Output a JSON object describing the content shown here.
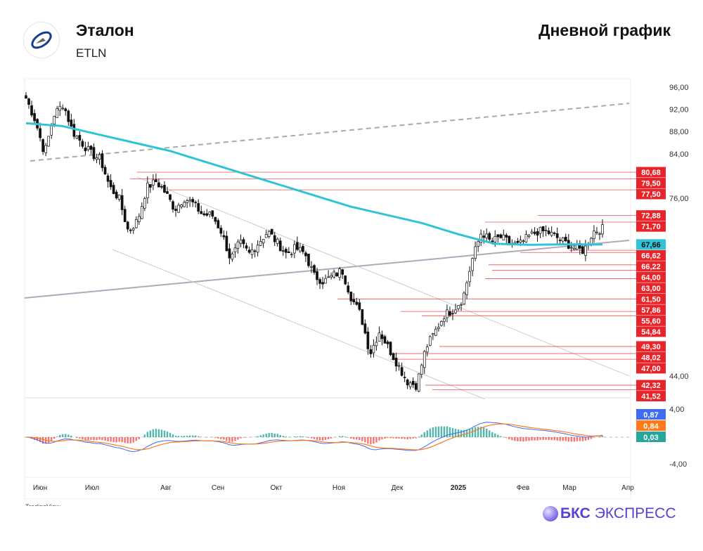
{
  "header": {
    "name": "Эталон",
    "ticker": "ETLN",
    "chart_title": "Дневной график"
  },
  "footer": {
    "tradingview": "TradingView",
    "brand_bold": "БКС",
    "brand_rest": "ЭКСПРЕСС"
  },
  "colors": {
    "up": "#ffffff",
    "down": "#111111",
    "ma": "#2ec4d6",
    "level": "#e8242a",
    "macd": "#3f6cf0",
    "signal": "#ff7a1a",
    "hist_pos": "#26a69a",
    "hist_neg": "#ef5350"
  },
  "chart_data": {
    "type": "candlestick",
    "title": "Дневной график",
    "x_ticks": [
      "Июн",
      "Июл",
      "Авг",
      "Сен",
      "Окт",
      "Ноя",
      "Дек",
      "2025",
      "Фев",
      "Мар",
      "Апр"
    ],
    "y_ticks": [
      "96,00",
      "92,00",
      "88,00",
      "84,00",
      "76,00",
      "44,00"
    ],
    "ylim": [
      40,
      97
    ],
    "close_keypoints": [
      94,
      90,
      84,
      91,
      93,
      88,
      86,
      84,
      83,
      78,
      76,
      70,
      72,
      78,
      79,
      77,
      74,
      76,
      75,
      73,
      73,
      70,
      65,
      68,
      66,
      68,
      70,
      68,
      66,
      67,
      66,
      62,
      61,
      62,
      63,
      58,
      55,
      48,
      52,
      49,
      46,
      43,
      42.3,
      49,
      52,
      55,
      56,
      58,
      65,
      70,
      68,
      69,
      68,
      67.5,
      69,
      70,
      70,
      69,
      68,
      67,
      66.5,
      70,
      70.5
    ],
    "ma_keypoints": [
      89.5,
      89,
      87.5,
      86,
      84.5,
      82.5,
      80.5,
      78.5,
      76.5,
      74.5,
      73,
      71.5,
      69.5,
      67.8,
      67.6,
      67.7,
      67.66
    ],
    "levels": [
      {
        "label": "80,68",
        "value": 80.68
      },
      {
        "label": "79,50",
        "value": 79.5
      },
      {
        "label": "77,50",
        "value": 77.5
      },
      {
        "label": "72,88",
        "value": 72.88
      },
      {
        "label": "71,70",
        "value": 71.7
      },
      {
        "label": "66,62",
        "value": 66.62
      },
      {
        "label": "66,22",
        "value": 66.22
      },
      {
        "label": "64,00",
        "value": 64
      },
      {
        "label": "63,00",
        "value": 63
      },
      {
        "label": "61,50",
        "value": 61.5
      },
      {
        "label": "57,86",
        "value": 57.86
      },
      {
        "label": "55,60",
        "value": 55.6
      },
      {
        "label": "54,84",
        "value": 54.84
      },
      {
        "label": "49,30",
        "value": 49.3
      },
      {
        "label": "48,02",
        "value": 48.02
      },
      {
        "label": "47,00",
        "value": 47
      },
      {
        "label": "42,32",
        "value": 42.32
      },
      {
        "label": "41,52",
        "value": 41.52
      }
    ],
    "ma_last": {
      "label": "67,66",
      "value": 67.66
    },
    "macd": {
      "ticks": [
        "4,00",
        "-4,00"
      ],
      "macd_label": "0,87",
      "signal_label": "0,84",
      "hist_label": "0,03"
    }
  }
}
